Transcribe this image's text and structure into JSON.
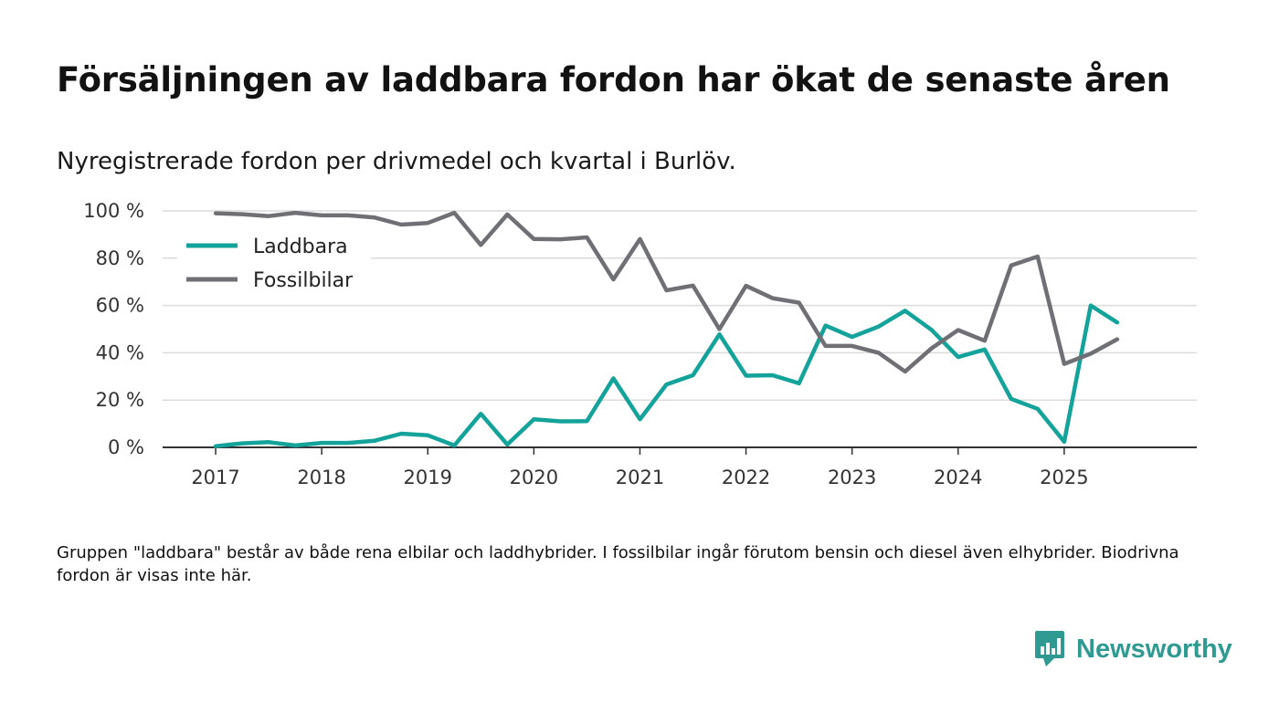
{
  "title": "Försäljningen av laddbara fordon har ökat de senaste åren",
  "subtitle": "Nyregistrerade fordon per drivmedel och kvartal i Burlöv.",
  "footnote": "Gruppen \"laddbara\" består av både rena elbilar och laddhybrider. I fossilbilar ingår förutom bensin och diesel även elhybrider. Biodrivna fordon är visas inte här.",
  "brand": {
    "name": "Newsworthy",
    "color": "#2f9a91"
  },
  "chart_data": {
    "type": "line",
    "title": "Försäljningen av laddbara fordon har ökat de senaste åren",
    "subtitle": "Nyregistrerade fordon per drivmedel och kvartal i Burlöv.",
    "xlabel": "",
    "ylabel": "",
    "ylim": [
      0,
      100
    ],
    "yticks": [
      0,
      20,
      40,
      60,
      80,
      100
    ],
    "ytick_labels": [
      "0 %",
      "20 %",
      "40 %",
      "60 %",
      "80 %",
      "100 %"
    ],
    "xticks": [
      2017,
      2018,
      2019,
      2020,
      2021,
      2022,
      2023,
      2024,
      2025
    ],
    "xtick_labels": [
      "2017",
      "2018",
      "2019",
      "2020",
      "2021",
      "2022",
      "2023",
      "2024",
      "2025"
    ],
    "xlim": [
      2016.5,
      2026.25
    ],
    "grid": true,
    "legend_position": "top-left",
    "x": [
      2017,
      2017.25,
      2017.5,
      2017.75,
      2018,
      2018.25,
      2018.5,
      2018.75,
      2019,
      2019.25,
      2019.5,
      2019.75,
      2020,
      2020.25,
      2020.5,
      2020.75,
      2021,
      2021.25,
      2021.5,
      2021.75,
      2022,
      2022.25,
      2022.5,
      2022.75,
      2023,
      2023.25,
      2023.5,
      2023.75,
      2024,
      2024.25,
      2024.5,
      2024.75,
      2025,
      2025.25,
      2025.5
    ],
    "series": [
      {
        "name": "Laddbara",
        "color": "#14a39a",
        "values": [
          0.5,
          1.7,
          2.2,
          0.8,
          1.9,
          1.9,
          2.8,
          5.8,
          5.1,
          0.8,
          14.2,
          1.2,
          11.9,
          11.0,
          11.1,
          29.2,
          11.9,
          26.6,
          30.5,
          47.8,
          30.3,
          30.5,
          27.1,
          51.5,
          46.7,
          51.1,
          57.8,
          49.7,
          38.2,
          41.4,
          20.5,
          16.3,
          2.4,
          60.0,
          52.8
        ]
      },
      {
        "name": "Fossilbilar",
        "color": "#6f6f76",
        "values": [
          99.0,
          98.6,
          97.8,
          99.2,
          98.1,
          98.1,
          97.2,
          94.2,
          94.9,
          99.2,
          85.6,
          98.5,
          88.1,
          88.0,
          88.8,
          71.0,
          88.1,
          66.4,
          68.4,
          50.0,
          68.3,
          63.1,
          61.2,
          42.9,
          42.9,
          40.0,
          32.1,
          41.9,
          49.6,
          45.1,
          76.9,
          80.7,
          35.3,
          39.6,
          45.7
        ]
      }
    ]
  }
}
